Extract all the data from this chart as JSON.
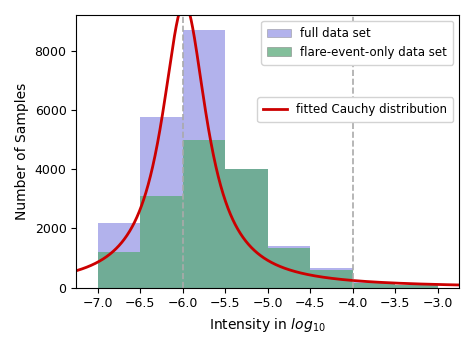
{
  "title": "",
  "xlabel": "Intensity in $log_{10}$",
  "ylabel": "Number of Samples",
  "xlim": [
    -7.25,
    -2.75
  ],
  "ylim": [
    0,
    9200
  ],
  "xticks": [
    -7.0,
    -6.5,
    -6.0,
    -5.5,
    -5.0,
    -4.5,
    -4.0,
    -3.5,
    -3.0
  ],
  "yticks": [
    0,
    2000,
    4000,
    6000,
    8000
  ],
  "full_bins": [
    -7.5,
    -7.0,
    -6.5,
    -6.0,
    -5.5,
    -5.0,
    -4.5,
    -4.0,
    -3.5,
    -3.0
  ],
  "full_heights": [
    0,
    2200,
    5750,
    8700,
    4000,
    1400,
    650,
    200,
    100
  ],
  "flare_bins": [
    -7.5,
    -7.0,
    -6.5,
    -6.0,
    -5.5,
    -5.0,
    -4.5,
    -4.0,
    -3.5,
    -3.0
  ],
  "flare_heights": [
    0,
    1200,
    3100,
    5000,
    4000,
    1350,
    600,
    150,
    80
  ],
  "full_color": "#8080e0",
  "full_alpha": 0.6,
  "flare_color": "#5aaa7a",
  "flare_alpha": 0.75,
  "cauchy_color": "#cc0000",
  "cauchy_x0": -5.98,
  "cauchy_gamma": 0.32,
  "cauchy_amplitude": 9600,
  "vline1": -6.0,
  "vline2": -4.0,
  "vline_color": "#aaaaaa",
  "vline_style": "--",
  "legend_full": "full data set",
  "legend_flare": "flare-event-only data set",
  "legend_cauchy": "fitted Cauchy distribution",
  "figsize": [
    4.74,
    3.49
  ],
  "dpi": 100
}
